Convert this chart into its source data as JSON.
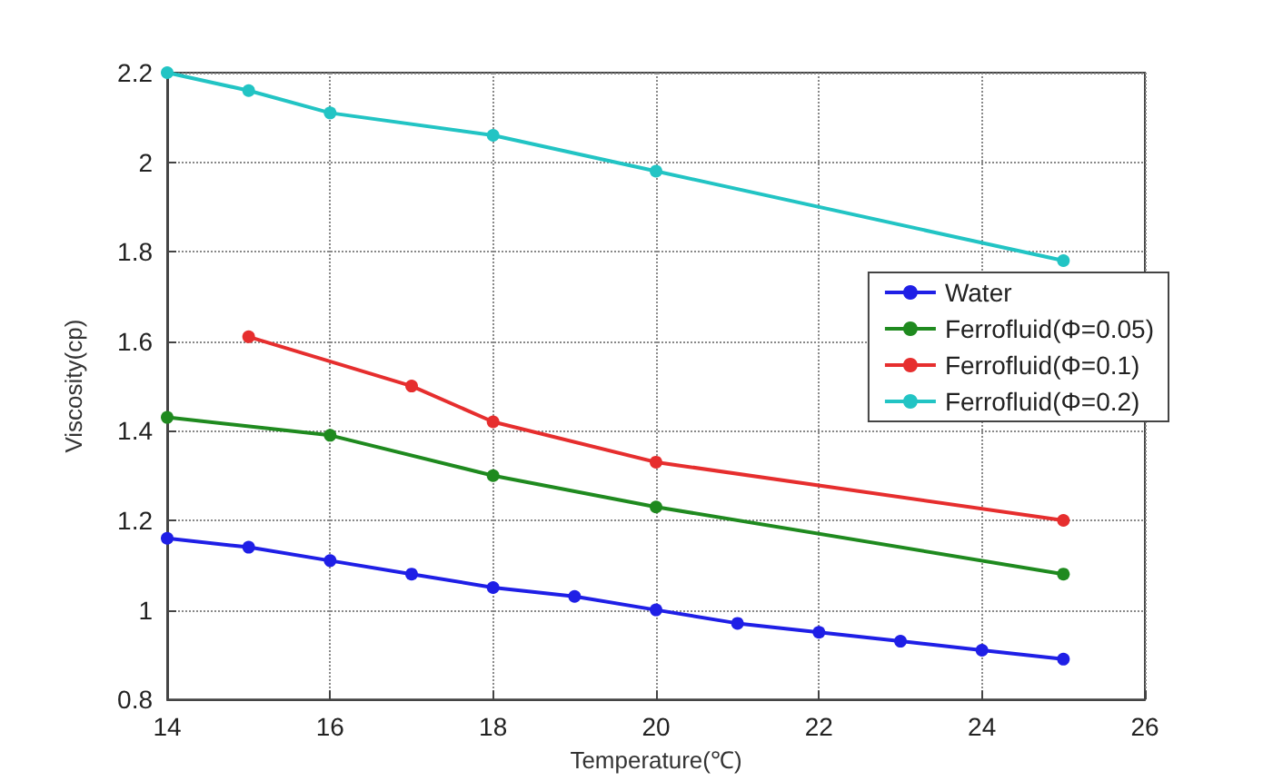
{
  "chart_data": {
    "type": "line",
    "xlabel": "Temperature(℃)",
    "ylabel": "Viscosity(cp)",
    "xlim": [
      14,
      26
    ],
    "xticks": [
      14,
      16,
      18,
      20,
      22,
      24,
      26
    ],
    "ylim": [
      0.8,
      2.2
    ],
    "yticks": [
      0.8,
      1,
      1.2,
      1.4,
      1.6,
      1.8,
      2,
      2.2
    ],
    "grid": true,
    "legend": "right",
    "marker": "circle",
    "line_style": "solid",
    "series": [
      {
        "name": "Water",
        "color": "#1f1fe6",
        "x": [
          14,
          15,
          16,
          17,
          18,
          19,
          20,
          21,
          22,
          23,
          24,
          25
        ],
        "values": [
          1.16,
          1.14,
          1.11,
          1.08,
          1.05,
          1.03,
          1.0,
          0.97,
          0.95,
          0.93,
          0.91,
          0.89
        ]
      },
      {
        "name": "Ferrofluid(Φ=0.05)",
        "color": "#1f8a1f",
        "x": [
          14,
          16,
          18,
          20,
          25
        ],
        "values": [
          1.43,
          1.39,
          1.3,
          1.23,
          1.08
        ]
      },
      {
        "name": "Ferrofluid(Φ=0.1)",
        "color": "#e62e2e",
        "x": [
          15,
          17,
          18,
          20,
          25
        ],
        "values": [
          1.61,
          1.5,
          1.42,
          1.33,
          1.2
        ]
      },
      {
        "name": "Ferrofluid(Φ=0.2)",
        "color": "#22c4c4",
        "x": [
          14,
          15,
          16,
          18,
          20,
          25
        ],
        "values": [
          2.2,
          2.16,
          2.11,
          2.06,
          1.98,
          1.78
        ]
      }
    ]
  }
}
